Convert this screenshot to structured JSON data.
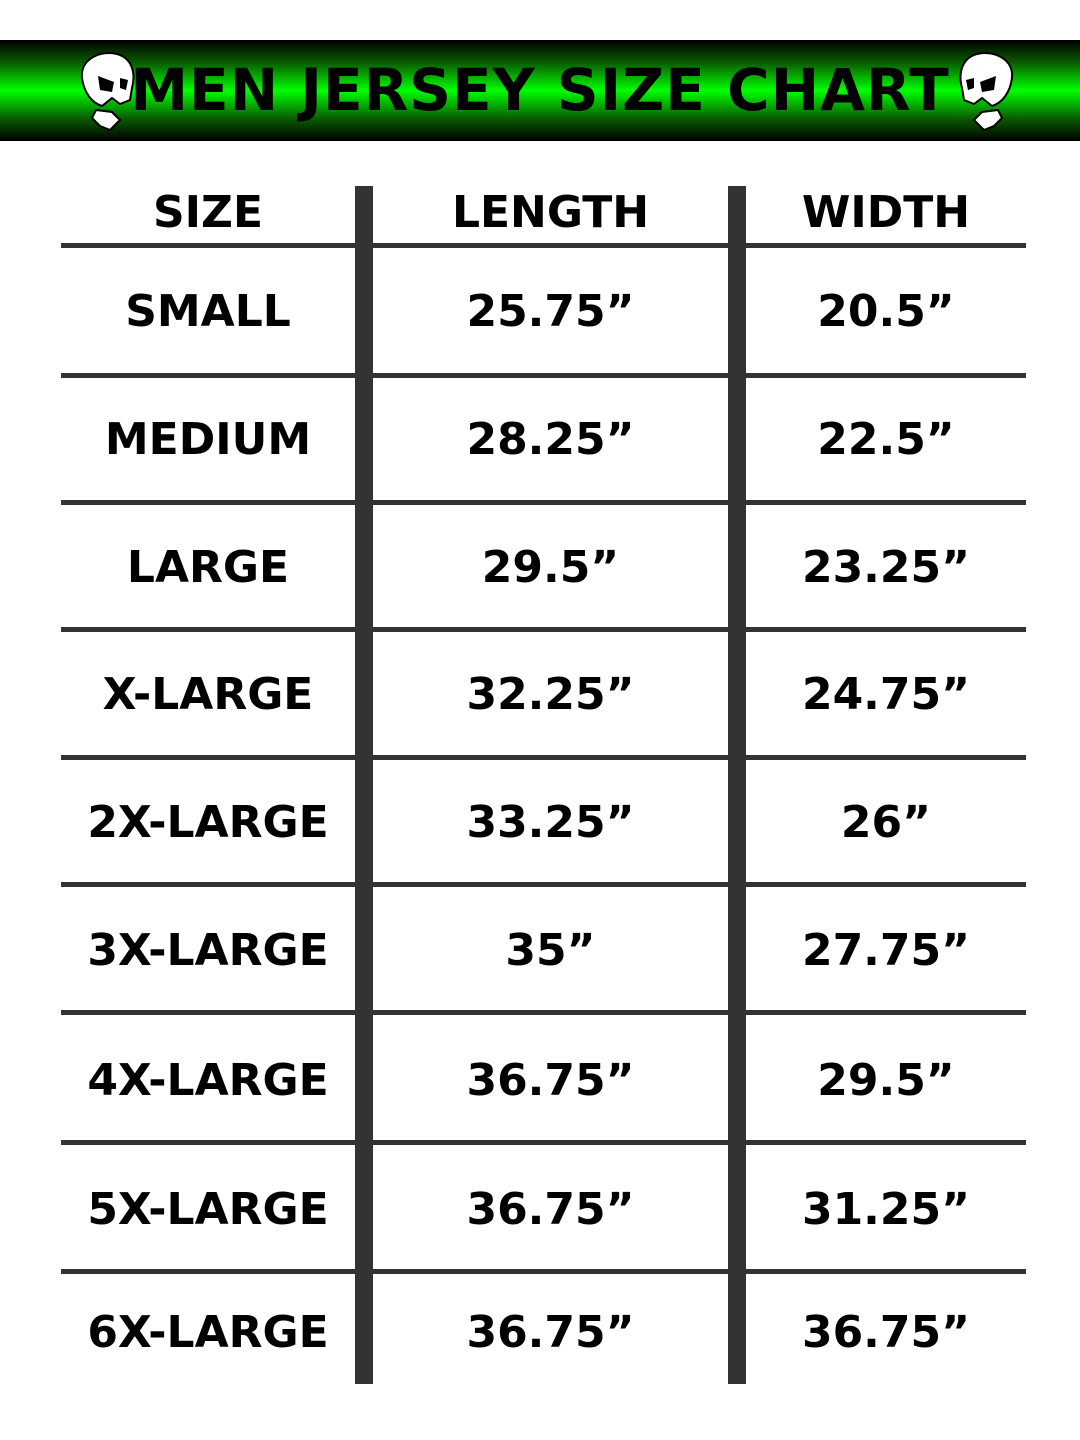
{
  "header": {
    "title": "MEN JERSEY SIZE CHART",
    "accent_color": "#00ff00",
    "icon": "skull-icon"
  },
  "table": {
    "columns": [
      "SIZE",
      "LENGTH",
      "WIDTH"
    ],
    "rows": [
      [
        "SMALL",
        "25.75”",
        "20.5”"
      ],
      [
        "MEDIUM",
        "28.25”",
        "22.5”"
      ],
      [
        "LARGE",
        "29.5”",
        "23.25”"
      ],
      [
        "X-LARGE",
        "32.25”",
        "24.75”"
      ],
      [
        "2X-LARGE",
        "33.25”",
        "26”"
      ],
      [
        "3X-LARGE",
        "35”",
        "27.75”"
      ],
      [
        "4X-LARGE",
        "36.75”",
        "29.5”"
      ],
      [
        "5X-LARGE",
        "36.75”",
        "31.25”"
      ],
      [
        "6X-LARGE",
        "36.75”",
        "36.75”"
      ]
    ]
  }
}
